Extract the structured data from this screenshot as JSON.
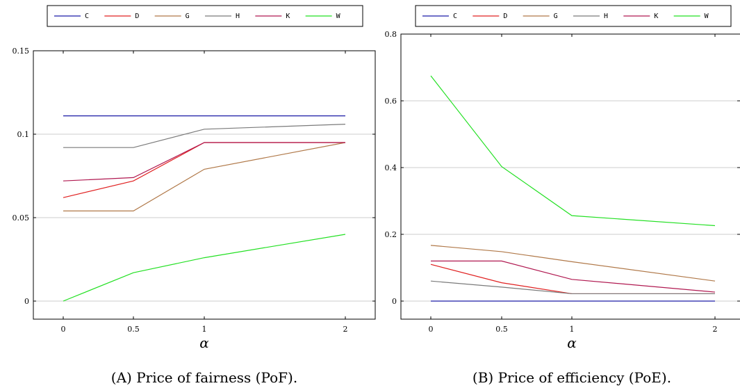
{
  "colors": {
    "C": "#1a1aa6",
    "D": "#e02020",
    "G": "#b07848",
    "H": "#7a7a7a",
    "K": "#b01850",
    "W": "#22e022"
  },
  "chart_data": [
    {
      "type": "line",
      "x": [
        0,
        0.5,
        1,
        2
      ],
      "x_tick_labels": [
        "0",
        "0.5",
        "1",
        "2"
      ],
      "y_ticks": [
        0,
        0.05,
        0.1,
        0.15
      ],
      "y_tick_labels": [
        "0",
        "0.05",
        "0.1",
        "0.15"
      ],
      "ylim": [
        -0.01,
        0.16
      ],
      "xlabel": "α",
      "legend_position": "top",
      "grid": "horizontal",
      "caption": "(A) Price of fairness (PoF).",
      "series": [
        {
          "name": "C",
          "values": [
            0.111,
            0.111,
            0.111,
            0.111
          ]
        },
        {
          "name": "D",
          "values": [
            0.062,
            0.072,
            0.095,
            0.095
          ]
        },
        {
          "name": "G",
          "values": [
            0.054,
            0.054,
            0.079,
            0.095
          ]
        },
        {
          "name": "H",
          "values": [
            0.092,
            0.092,
            0.103,
            0.106
          ]
        },
        {
          "name": "K",
          "values": [
            0.072,
            0.074,
            0.095,
            0.095
          ]
        },
        {
          "name": "W",
          "values": [
            0.0,
            0.017,
            0.026,
            0.04
          ]
        }
      ]
    },
    {
      "type": "line",
      "x": [
        0,
        0.5,
        1,
        2
      ],
      "x_tick_labels": [
        "0",
        "0.5",
        "1",
        "2"
      ],
      "y_ticks": [
        0,
        0.2,
        0.4,
        0.6,
        0.8
      ],
      "y_tick_labels": [
        "0",
        "0.2",
        "0.4",
        "0.6",
        "0.8"
      ],
      "ylim": [
        -0.05,
        0.8
      ],
      "xlabel": "α",
      "legend_position": "top",
      "grid": "horizontal",
      "caption": "(B) Price of efficiency (PoE).",
      "series": [
        {
          "name": "C",
          "values": [
            0.0,
            0.0,
            0.0,
            0.0
          ]
        },
        {
          "name": "D",
          "values": [
            0.11,
            0.055,
            0.022,
            0.022
          ]
        },
        {
          "name": "G",
          "values": [
            0.167,
            0.148,
            0.118,
            0.06
          ]
        },
        {
          "name": "H",
          "values": [
            0.06,
            0.042,
            0.022,
            0.022
          ]
        },
        {
          "name": "K",
          "values": [
            0.12,
            0.12,
            0.065,
            0.027
          ]
        },
        {
          "name": "W",
          "values": [
            0.675,
            0.403,
            0.256,
            0.226
          ]
        }
      ]
    }
  ]
}
